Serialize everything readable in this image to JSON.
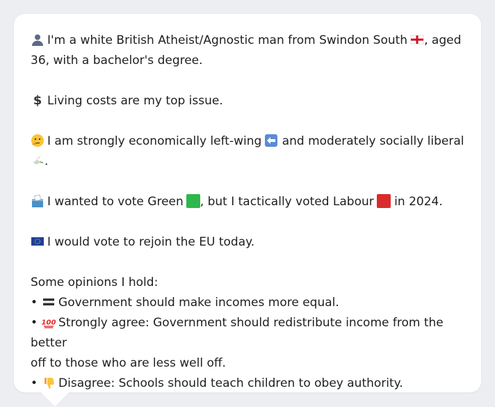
{
  "profile": {
    "intro_a": "I'm a white British Atheist/Agnostic man from Swindon South",
    "intro_b": ", aged 36, with a bachelor's degree.",
    "issue": "Living costs are my top issue.",
    "ideology_a": "I am strongly economically left-wing",
    "ideology_b": "and moderately socially liberal",
    "ideology_c": ".",
    "vote_a": "I wanted to vote Green",
    "vote_b": ", but I tactically voted Labour",
    "vote_c": "in 2024.",
    "eu": "I would vote to rejoin the EU today.",
    "opinions_heading": "Some opinions I hold:",
    "opinions": [
      {
        "bullet": "•",
        "text": "Government should make incomes more equal."
      },
      {
        "bullet": "•",
        "text": "Strongly agree: Government should redistribute income from the better"
      },
      {
        "bullet": "",
        "text": "off to those who are less well off."
      },
      {
        "bullet": "•",
        "text": "Disagree: Schools should teach children to obey authority."
      }
    ]
  },
  "icons": {
    "person": "person-icon",
    "england_flag": "england-flag-icon",
    "money": "dollar-icon",
    "thinking": "thinking-face-icon",
    "left_arrow": "left-arrow-icon",
    "dove": "dove-icon",
    "ballot": "ballot-box-icon",
    "green_square": "green-square-icon",
    "red_square": "red-square-icon",
    "eu_flag": "eu-flag-icon",
    "equals": "equals-icon",
    "hundred": "hundred-icon",
    "thumbs_down": "thumbs-down-icon"
  },
  "colors": {
    "green": "#2db84b",
    "labour_red": "#d92b2b",
    "eu_blue": "#1f3f99"
  }
}
